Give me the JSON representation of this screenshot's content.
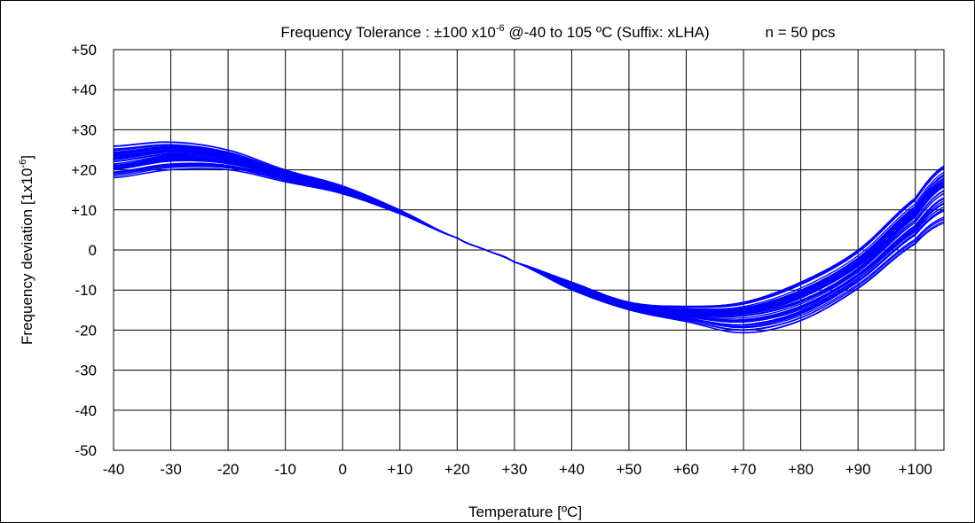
{
  "chart_data": {
    "type": "line",
    "title_main": "Frequency Tolerance : ±100 x10",
    "title_exp": "-6",
    "title_rest": " @-40 to 105 ºC (Suffix: xLHA)",
    "annotation": "n = 50 pcs",
    "xlabel": "Temperature [ºC]",
    "ylabel_main": "Frequency deviation [1x10",
    "ylabel_exp": "-6",
    "ylabel_end": "]",
    "xlim": [
      -40,
      105
    ],
    "ylim": [
      -50,
      50
    ],
    "x_ticks": [
      -40,
      -30,
      -20,
      -10,
      0,
      10,
      20,
      30,
      40,
      50,
      60,
      70,
      80,
      90,
      100
    ],
    "x_tick_labels": [
      "-40",
      "-30",
      "-20",
      "-10",
      "0",
      "+10",
      "+20",
      "+30",
      "+40",
      "+50",
      "+60",
      "+70",
      "+80",
      "+90",
      "+100"
    ],
    "y_ticks": [
      50,
      40,
      30,
      20,
      10,
      0,
      -10,
      -20,
      -30,
      -40,
      -50
    ],
    "y_tick_labels": [
      "+50",
      "+40",
      "+30",
      "+20",
      "+10",
      "0",
      "-10",
      "-20",
      "-30",
      "-40",
      "-50"
    ],
    "grid": true,
    "series_color": "#0000ff",
    "series_count": 50,
    "x": [
      -40,
      -30,
      -20,
      -10,
      0,
      10,
      20,
      25,
      30,
      40,
      50,
      60,
      70,
      80,
      90,
      100,
      105
    ],
    "envelope_upper": [
      26,
      27,
      25,
      20,
      16,
      10,
      3,
      0,
      -3,
      -8,
      -13,
      -14,
      -13,
      -8,
      0,
      13,
      21
    ],
    "envelope_lower": [
      18,
      20,
      20,
      17,
      14,
      9,
      3,
      0,
      -3,
      -10,
      -15,
      -18,
      -21,
      -18,
      -10,
      1,
      6
    ],
    "typical": [
      21.5,
      23.5,
      22.5,
      18.5,
      15,
      9.5,
      3,
      0,
      -3,
      -9,
      -14,
      -16,
      -16.5,
      -13,
      -5,
      7.5,
      15
    ]
  }
}
